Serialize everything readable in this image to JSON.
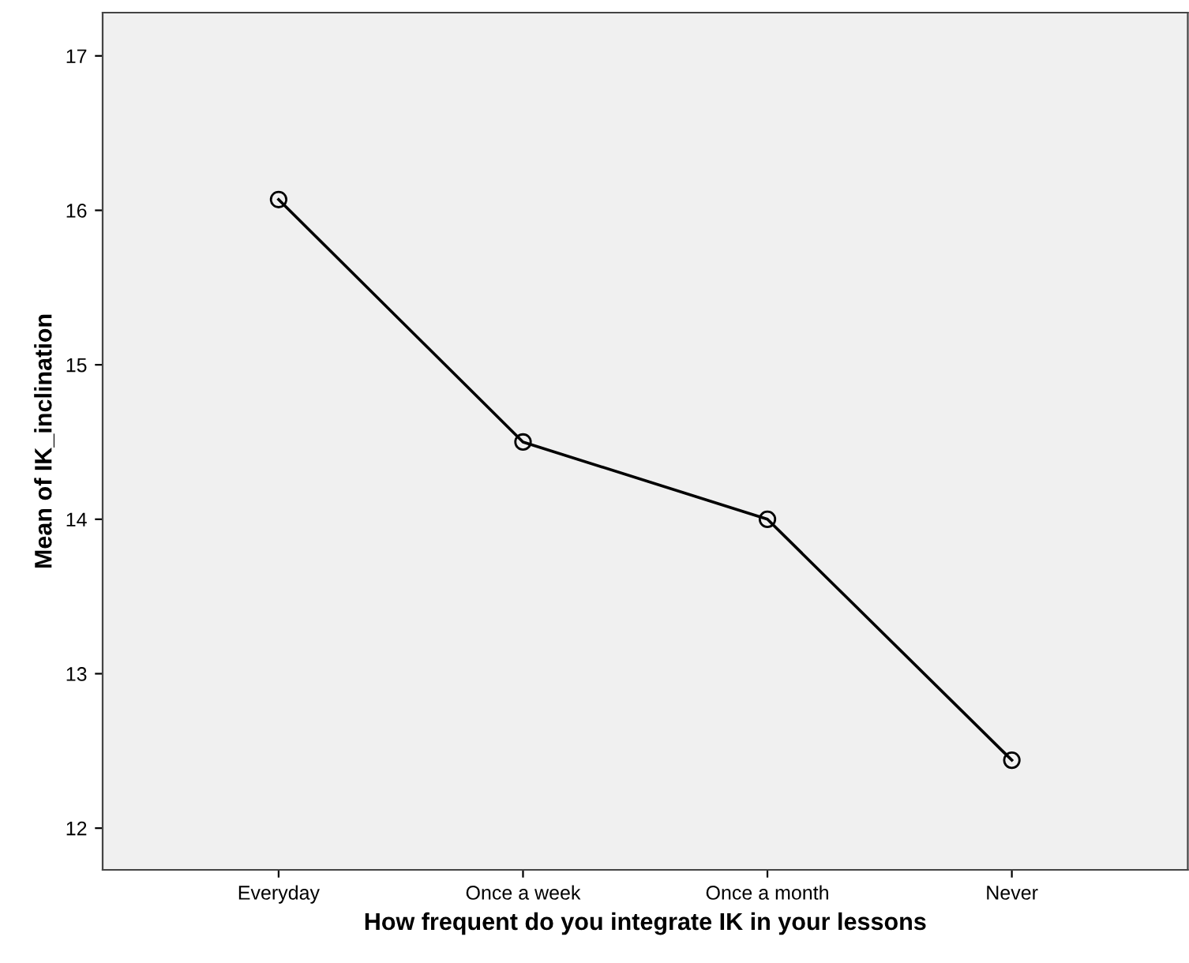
{
  "chart_data": {
    "type": "line",
    "xlabel": "How frequent do you integrate IK in your lessons",
    "ylabel": "Mean of IK_inclination",
    "categories": [
      "Everyday",
      "Once a week",
      "Once a month",
      "Never"
    ],
    "series": [
      {
        "color": "#000000",
        "values": [
          16.07,
          14.5,
          14.0,
          12.44
        ]
      }
    ],
    "ylim": [
      11.73,
      17.28
    ],
    "yticks": [
      12,
      13,
      14,
      15,
      16,
      17
    ],
    "grid": false,
    "marker": "circle",
    "line_style": "solid"
  }
}
